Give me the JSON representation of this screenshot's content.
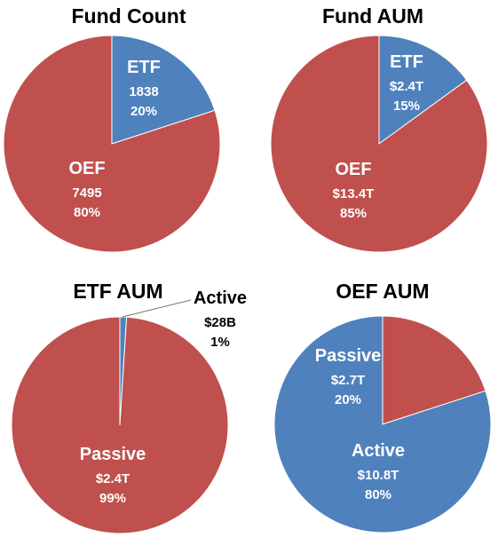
{
  "colors": {
    "blue": "#4F81BD",
    "red": "#C0504D",
    "label_light": "#ffffff",
    "label_dark": "#000000"
  },
  "chart_data": [
    {
      "type": "pie",
      "title": "Fund Count",
      "slices": [
        {
          "name": "ETF",
          "value": 20,
          "lines": [
            "ETF",
            "1838",
            "20%"
          ],
          "color": "#4F81BD"
        },
        {
          "name": "OEF",
          "value": 80,
          "lines": [
            "OEF",
            "7495",
            "80%"
          ],
          "color": "#C0504D"
        }
      ]
    },
    {
      "type": "pie",
      "title": "Fund AUM",
      "slices": [
        {
          "name": "ETF",
          "value": 15,
          "lines": [
            "ETF",
            "$2.4T",
            "15%"
          ],
          "color": "#4F81BD"
        },
        {
          "name": "OEF",
          "value": 85,
          "lines": [
            "OEF",
            "$13.4T",
            "85%"
          ],
          "color": "#C0504D"
        }
      ]
    },
    {
      "type": "pie",
      "title": "ETF AUM",
      "slices": [
        {
          "name": "Active",
          "value": 1,
          "lines": [
            "Active",
            "$28B",
            "1%"
          ],
          "color": "#4F81BD"
        },
        {
          "name": "Passive",
          "value": 99,
          "lines": [
            "Passive",
            "$2.4T",
            "99%"
          ],
          "color": "#C0504D"
        }
      ]
    },
    {
      "type": "pie",
      "title": "OEF AUM",
      "slices": [
        {
          "name": "Passive",
          "value": 20,
          "lines": [
            "Passive",
            "$2.7T",
            "20%"
          ],
          "color": "#C0504D"
        },
        {
          "name": "Active",
          "value": 80,
          "lines": [
            "Active",
            "$10.8T",
            "80%"
          ],
          "color": "#4F81BD"
        }
      ]
    }
  ]
}
